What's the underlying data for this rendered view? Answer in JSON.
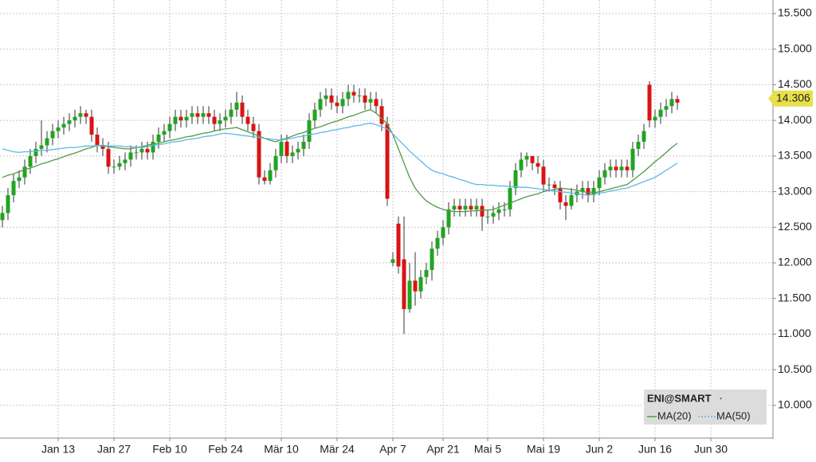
{
  "chart_data": {
    "type": "candlestick",
    "symbol": "ENI@SMART",
    "last_price": 14.306,
    "ylim": [
      9.54,
      15.69
    ],
    "yticks": [
      {
        "value": 10,
        "label": "10.000"
      },
      {
        "value": 10.5,
        "label": "10.500"
      },
      {
        "value": 11,
        "label": "11.000"
      },
      {
        "value": 11.5,
        "label": "11.500"
      },
      {
        "value": 12,
        "label": "12.000"
      },
      {
        "value": 12.5,
        "label": "12.500"
      },
      {
        "value": 13,
        "label": "13.000"
      },
      {
        "value": 13.5,
        "label": "13.500"
      },
      {
        "value": 14,
        "label": "14.000"
      },
      {
        "value": 14.5,
        "label": "14.500"
      },
      {
        "value": 15,
        "label": "15.000"
      },
      {
        "value": 15.5,
        "label": "15.500"
      }
    ],
    "xlim": [
      -0.43,
      138.14
    ],
    "xticks": [
      {
        "value": 10,
        "label": "Jan 13"
      },
      {
        "value": 20,
        "label": "Jan 27"
      },
      {
        "value": 30,
        "label": "Feb 10"
      },
      {
        "value": 40,
        "label": "Feb 24"
      },
      {
        "value": 50,
        "label": "Mär 10"
      },
      {
        "value": 60,
        "label": "Mär 24"
      },
      {
        "value": 70,
        "label": "Apr 7"
      },
      {
        "value": 79,
        "label": "Apr 21"
      },
      {
        "value": 87,
        "label": "Mai 5"
      },
      {
        "value": 97,
        "label": "Mai 19"
      },
      {
        "value": 107,
        "label": "Jun 2"
      },
      {
        "value": 117,
        "label": "Jun 16"
      },
      {
        "value": 127,
        "label": "Jun 30"
      }
    ],
    "grid": true,
    "up_color": "#1fa51f",
    "down_color": "#d91414",
    "open": [
      12.6,
      12.7,
      12.95,
      13.15,
      13.2,
      13.35,
      13.5,
      13.6,
      13.65,
      13.75,
      13.85,
      13.9,
      13.95,
      14.0,
      14.05,
      14.1,
      14.05,
      13.8,
      13.65,
      13.6,
      13.35,
      13.35,
      13.4,
      13.45,
      13.55,
      13.55,
      13.6,
      13.55,
      13.7,
      13.8,
      13.85,
      13.95,
      14.05,
      14.0,
      14.05,
      14.1,
      14.05,
      14.1,
      14.05,
      13.95,
      14.0,
      14.05,
      14.15,
      14.25,
      14.05,
      13.95,
      13.85,
      13.2,
      13.15,
      13.3,
      13.5,
      13.7,
      13.5,
      13.55,
      13.6,
      13.7,
      14.0,
      14.15,
      14.3,
      14.35,
      14.25,
      14.2,
      14.3,
      14.4,
      14.35,
      14.35,
      14.25,
      14.3,
      14.2,
      13.95,
      12.0,
      12.55,
      12.05,
      11.35,
      11.75,
      11.6,
      11.8,
      11.9,
      12.2,
      12.35,
      12.5,
      12.75,
      12.8,
      12.75,
      12.8,
      12.75,
      12.8,
      12.65,
      12.65,
      12.7,
      12.75,
      12.75,
      13.05,
      13.3,
      13.45,
      13.5,
      13.4,
      13.35,
      13.1,
      13.1,
      13.05,
      12.85,
      12.8,
      12.95,
      13.0,
      13.05,
      12.95,
      13.05,
      13.2,
      13.3,
      13.35,
      13.3,
      13.35,
      13.3,
      13.6,
      13.7,
      14.5,
      14.0,
      14.05,
      14.15,
      14.2,
      14.3
    ],
    "high": [
      12.8,
      13.05,
      13.25,
      13.3,
      13.45,
      13.6,
      13.7,
      14.0,
      13.85,
      13.95,
      14.0,
      14.05,
      14.1,
      14.15,
      14.2,
      14.15,
      14.15,
      13.9,
      13.75,
      13.7,
      13.45,
      13.5,
      13.55,
      13.65,
      13.65,
      13.7,
      13.7,
      13.8,
      13.9,
      13.95,
      14.05,
      14.15,
      14.15,
      14.15,
      14.2,
      14.2,
      14.2,
      14.2,
      14.15,
      14.1,
      14.15,
      14.25,
      14.4,
      14.35,
      14.15,
      14.05,
      13.95,
      13.3,
      13.4,
      13.6,
      13.8,
      13.8,
      13.65,
      13.7,
      13.8,
      14.1,
      14.25,
      14.4,
      14.45,
      14.45,
      14.35,
      14.4,
      14.5,
      14.5,
      14.45,
      14.45,
      14.4,
      14.4,
      14.3,
      14.05,
      12.15,
      12.65,
      12.65,
      12.0,
      12.15,
      11.9,
      12.0,
      12.3,
      12.45,
      12.6,
      12.85,
      12.9,
      12.9,
      12.9,
      12.9,
      12.9,
      12.9,
      12.75,
      12.8,
      12.85,
      12.85,
      13.15,
      13.4,
      13.55,
      13.55,
      13.5,
      13.5,
      13.45,
      13.2,
      13.15,
      13.15,
      12.95,
      13.05,
      13.1,
      13.15,
      13.15,
      13.15,
      13.3,
      13.4,
      13.45,
      13.45,
      13.45,
      13.45,
      13.7,
      13.8,
      13.95,
      14.55,
      14.15,
      14.25,
      14.3,
      14.4,
      14.35
    ],
    "low": [
      12.5,
      12.6,
      12.85,
      13.05,
      13.1,
      13.25,
      13.4,
      13.5,
      13.55,
      13.65,
      13.75,
      13.8,
      13.85,
      13.9,
      13.95,
      13.95,
      13.7,
      13.55,
      13.5,
      13.25,
      13.25,
      13.3,
      13.3,
      13.35,
      13.45,
      13.45,
      13.45,
      13.45,
      13.6,
      13.7,
      13.75,
      13.85,
      13.9,
      13.9,
      13.95,
      13.95,
      13.95,
      13.95,
      13.85,
      13.85,
      13.9,
      13.95,
      14.05,
      13.95,
      13.85,
      13.75,
      13.1,
      13.1,
      13.1,
      13.2,
      13.4,
      13.4,
      13.4,
      13.45,
      13.5,
      13.6,
      13.9,
      14.05,
      14.2,
      14.15,
      14.1,
      14.1,
      14.2,
      14.25,
      14.25,
      14.15,
      14.15,
      14.1,
      13.85,
      12.8,
      11.95,
      11.85,
      11.0,
      11.3,
      11.4,
      11.5,
      11.7,
      11.75,
      12.1,
      12.25,
      12.4,
      12.65,
      12.65,
      12.65,
      12.65,
      12.65,
      12.45,
      12.55,
      12.55,
      12.6,
      12.65,
      12.65,
      12.95,
      13.2,
      13.35,
      13.3,
      13.25,
      13.0,
      13.0,
      12.95,
      12.75,
      12.6,
      12.75,
      12.85,
      12.9,
      12.85,
      12.85,
      12.95,
      13.1,
      13.2,
      13.2,
      13.2,
      13.2,
      13.2,
      13.5,
      13.6,
      13.9,
      13.9,
      13.95,
      14.05,
      14.1,
      14.15
    ],
    "close": [
      12.7,
      12.95,
      13.15,
      13.2,
      13.35,
      13.5,
      13.6,
      13.65,
      13.75,
      13.85,
      13.9,
      13.95,
      14.0,
      14.05,
      14.1,
      14.05,
      13.8,
      13.65,
      13.6,
      13.35,
      13.35,
      13.4,
      13.45,
      13.55,
      13.55,
      13.6,
      13.55,
      13.7,
      13.8,
      13.85,
      13.95,
      14.05,
      14.0,
      14.05,
      14.1,
      14.05,
      14.1,
      14.05,
      13.95,
      14.0,
      14.05,
      14.15,
      14.25,
      14.05,
      13.95,
      13.85,
      13.2,
      13.15,
      13.3,
      13.5,
      13.7,
      13.5,
      13.55,
      13.6,
      13.7,
      14.0,
      14.15,
      14.3,
      14.35,
      14.25,
      14.2,
      14.3,
      14.4,
      14.35,
      14.35,
      14.25,
      14.3,
      14.2,
      13.95,
      12.9,
      12.05,
      11.95,
      11.35,
      11.75,
      11.6,
      11.8,
      11.9,
      12.2,
      12.35,
      12.5,
      12.75,
      12.8,
      12.75,
      12.8,
      12.75,
      12.8,
      12.65,
      12.65,
      12.7,
      12.75,
      12.75,
      13.05,
      13.3,
      13.45,
      13.5,
      13.4,
      13.35,
      13.1,
      13.1,
      13.05,
      12.85,
      12.8,
      12.95,
      13.0,
      13.05,
      12.95,
      13.05,
      13.2,
      13.3,
      13.35,
      13.3,
      13.35,
      13.3,
      13.6,
      13.7,
      13.85,
      14.0,
      14.05,
      14.15,
      14.2,
      14.3,
      14.25
    ],
    "series": [
      {
        "name": "MA(20)",
        "color": "#4f9a45",
        "values": [
          13.2,
          13.23,
          13.25,
          13.28,
          13.31,
          13.33,
          13.36,
          13.39,
          13.41,
          13.44,
          13.46,
          13.49,
          13.52,
          13.54,
          13.57,
          13.6,
          13.62,
          13.65,
          13.64,
          13.63,
          13.62,
          13.61,
          13.6,
          13.6,
          13.62,
          13.63,
          13.65,
          13.67,
          13.68,
          13.7,
          13.72,
          13.73,
          13.75,
          13.77,
          13.78,
          13.8,
          13.82,
          13.83,
          13.85,
          13.87,
          13.88,
          13.89,
          13.9,
          13.87,
          13.84,
          13.81,
          13.78,
          13.75,
          13.72,
          13.7,
          13.73,
          13.75,
          13.78,
          13.81,
          13.83,
          13.86,
          13.89,
          13.91,
          13.94,
          13.97,
          13.99,
          14.02,
          14.05,
          14.07,
          14.1,
          14.13,
          14.15,
          14.1,
          14.03,
          13.95,
          13.8,
          13.6,
          13.4,
          13.2,
          13.05,
          12.95,
          12.87,
          12.82,
          12.78,
          12.75,
          12.73,
          12.72,
          12.72,
          12.72,
          12.73,
          12.73,
          12.74,
          12.74,
          12.75,
          12.78,
          12.81,
          12.84,
          12.87,
          12.9,
          12.93,
          12.95,
          12.97,
          13.0,
          13.02,
          13.03,
          13.05,
          13.04,
          13.03,
          13.02,
          13.0,
          12.99,
          12.98,
          13.0,
          13.02,
          13.04,
          13.06,
          13.08,
          13.1,
          13.16,
          13.22,
          13.28,
          13.35,
          13.42,
          13.48,
          13.55,
          13.62,
          13.68
        ]
      },
      {
        "name": "MA(50)",
        "color": "#5db8ea",
        "values": [
          13.6,
          13.58,
          13.56,
          13.55,
          13.56,
          13.56,
          13.57,
          13.58,
          13.58,
          13.59,
          13.6,
          13.61,
          13.62,
          13.62,
          13.63,
          13.64,
          13.64,
          13.65,
          13.65,
          13.64,
          13.64,
          13.64,
          13.63,
          13.63,
          13.62,
          13.62,
          13.63,
          13.65,
          13.66,
          13.67,
          13.69,
          13.7,
          13.71,
          13.73,
          13.74,
          13.75,
          13.77,
          13.78,
          13.79,
          13.81,
          13.82,
          13.81,
          13.8,
          13.79,
          13.78,
          13.77,
          13.76,
          13.75,
          13.74,
          13.73,
          13.72,
          13.74,
          13.75,
          13.77,
          13.78,
          13.8,
          13.81,
          13.83,
          13.84,
          13.86,
          13.87,
          13.89,
          13.9,
          13.92,
          13.93,
          13.95,
          13.96,
          13.94,
          13.91,
          13.88,
          13.81,
          13.73,
          13.65,
          13.57,
          13.5,
          13.43,
          13.36,
          13.3,
          13.27,
          13.25,
          13.22,
          13.2,
          13.17,
          13.15,
          13.12,
          13.1,
          13.1,
          13.09,
          13.09,
          13.08,
          13.08,
          13.07,
          13.07,
          13.06,
          13.06,
          13.05,
          13.04,
          13.03,
          13.02,
          13.01,
          13.0,
          12.99,
          12.98,
          12.97,
          12.96,
          12.95,
          12.96,
          12.98,
          12.99,
          13.01,
          13.02,
          13.04,
          13.05,
          13.08,
          13.11,
          13.14,
          13.17,
          13.2,
          13.25,
          13.3,
          13.35,
          13.4
        ]
      }
    ]
  }
}
